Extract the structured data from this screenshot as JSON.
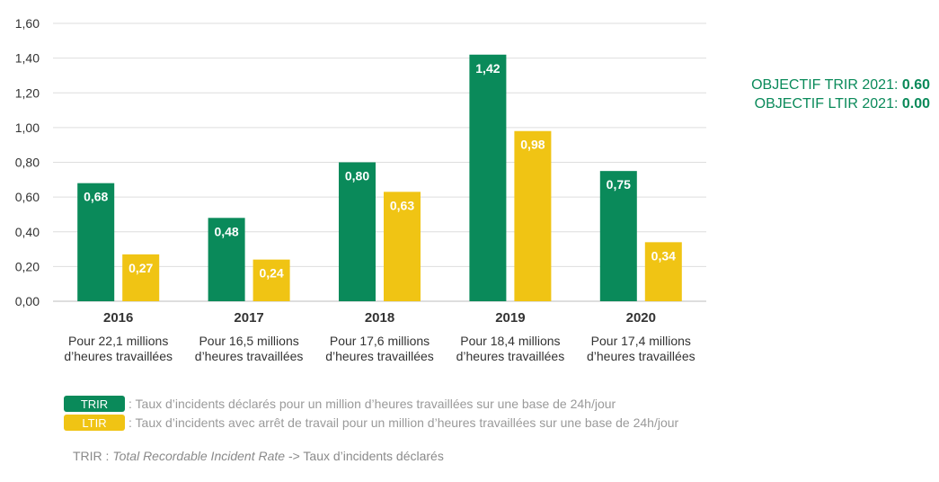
{
  "chart_data": {
    "type": "bar",
    "categories": [
      "2016",
      "2017",
      "2018",
      "2019",
      "2020"
    ],
    "subtitles": [
      [
        "Pour 22,1 millions",
        "d’heures travaillées"
      ],
      [
        "Pour 16,5 millions",
        "d’heures travaillées"
      ],
      [
        "Pour 17,6 millions",
        "d’heures travaillées"
      ],
      [
        "Pour 18,4 millions",
        "d’heures travaillées"
      ],
      [
        "Pour 17,4 millions",
        "d’heures travaillées"
      ]
    ],
    "series": [
      {
        "name": "TRIR",
        "values": [
          0.68,
          0.48,
          0.8,
          1.42,
          0.75
        ],
        "labels": [
          "0,68",
          "0,48",
          "0,80",
          "1,42",
          "0,75"
        ],
        "color": "#0a8a5a"
      },
      {
        "name": "LTIR",
        "values": [
          0.27,
          0.24,
          0.63,
          0.98,
          0.34
        ],
        "labels": [
          "0,27",
          "0,24",
          "0,63",
          "0,98",
          "0,34"
        ],
        "color": "#f0c414"
      }
    ],
    "ylim": [
      0,
      1.6
    ],
    "yticks": [
      "0,00",
      "0,20",
      "0,40",
      "0,60",
      "0,80",
      "1,00",
      "1,20",
      "1,40",
      "1,60"
    ],
    "grid": true,
    "title": "",
    "xlabel": "",
    "ylabel": ""
  },
  "objectives": {
    "trir_label": "OBJECTIF TRIR 2021: ",
    "trir_value": "0.60",
    "ltir_label": "OBJECTIF LTIR 2021: ",
    "ltir_value": "0.00"
  },
  "legend": [
    {
      "label": "TRIR",
      "text": ": Taux d’incidents déclarés pour un million d’heures travaillées sur une base de 24h/jour",
      "color": "#0a8a5a"
    },
    {
      "label": "LTIR",
      "text": ": Taux d’incidents avec arrêt de travail pour un million d’heures travaillées sur une base de 24h/jour",
      "color": "#f0c414"
    }
  ],
  "footnote": {
    "prefix": "TRIR : ",
    "italic": "Total Recordable Incident Rate",
    "suffix": " -> Taux d’incidents déclarés"
  }
}
